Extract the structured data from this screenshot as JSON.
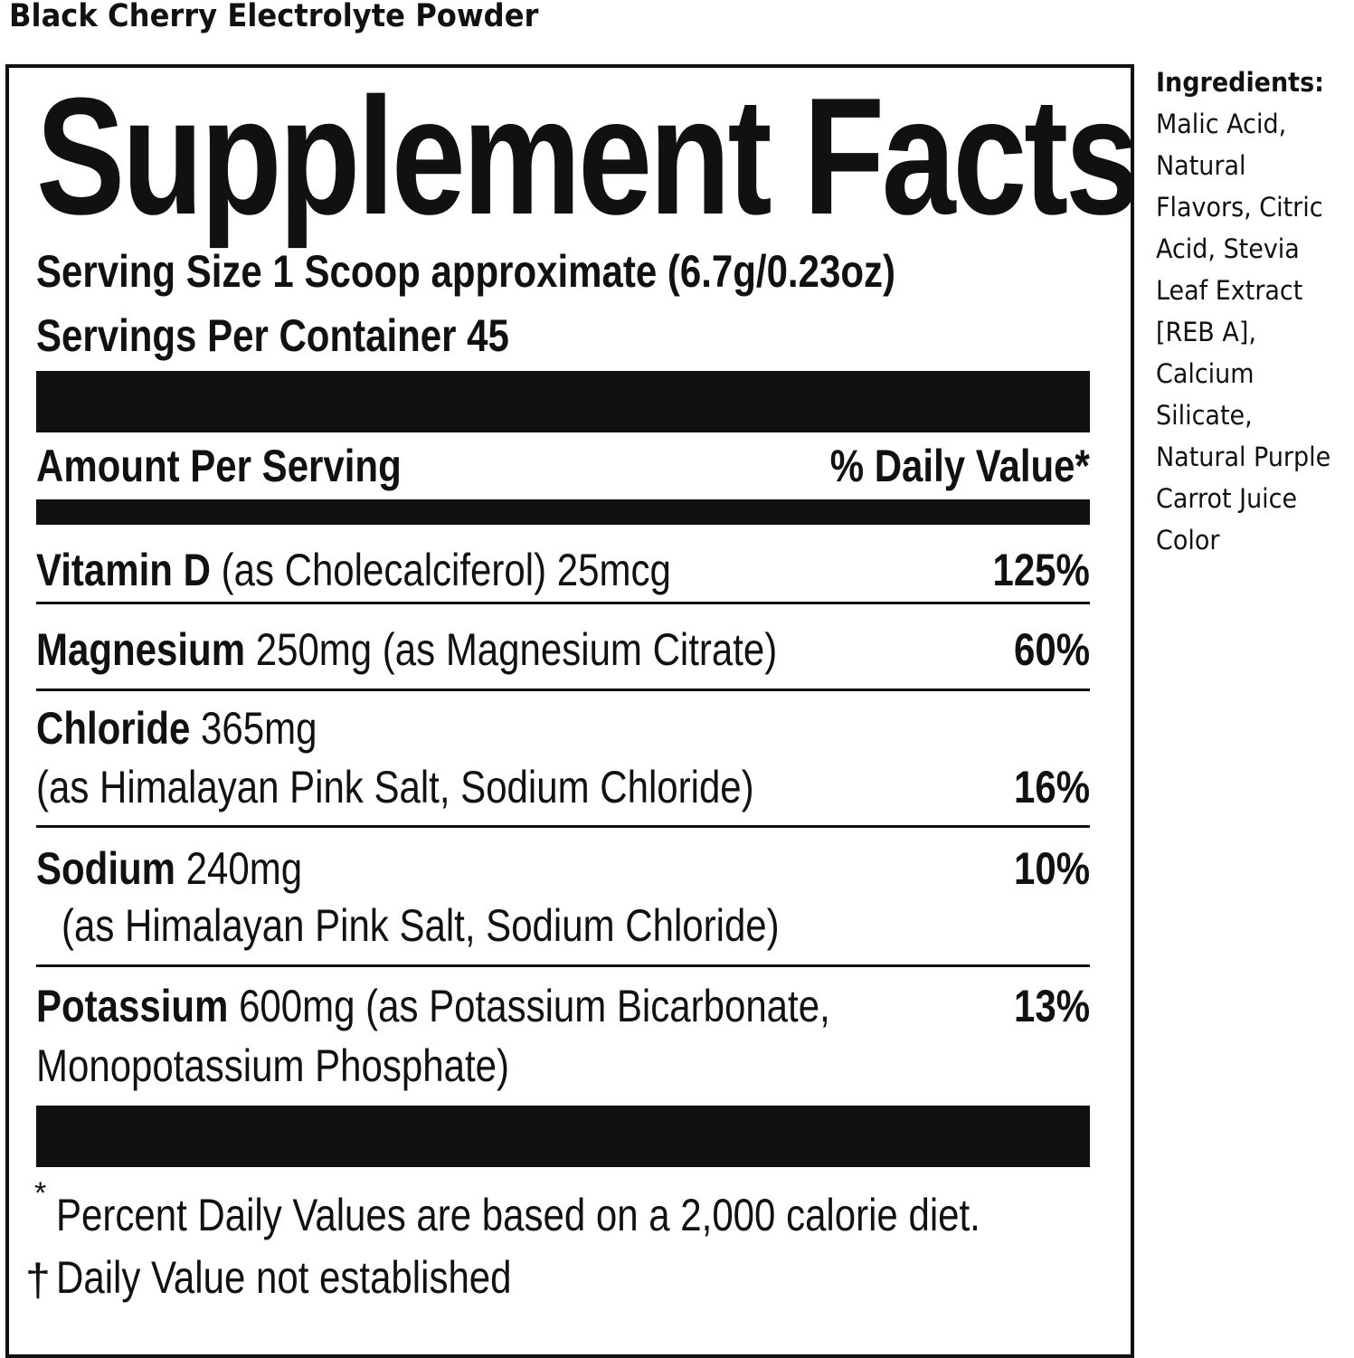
{
  "product_name": "Black Cherry Electrolyte Powder",
  "panel": {
    "title": "Supplement Facts",
    "serving_size": "Serving Size 1 Scoop approximate (6.7g/0.23oz)",
    "servings_per_container": "Servings Per Container 45",
    "amount_header": "Amount Per Serving",
    "dv_header": "% Daily Value*",
    "rows": [
      {
        "name": "Vitamin D",
        "detail": " (as Cholecalciferol) 25mcg",
        "dv": "125%"
      },
      {
        "name": "Magnesium",
        "detail": " 250mg (as Magnesium Citrate)",
        "dv": "60%"
      },
      {
        "name": "Chloride",
        "detail": " 365mg",
        "detail2": "(as Himalayan Pink Salt, Sodium Chloride)",
        "dv": "16%"
      },
      {
        "name": "Sodium",
        "detail": " 240mg",
        "detail2": "(as Himalayan Pink Salt, Sodium Chloride)",
        "dv": "10%"
      },
      {
        "name": "Potassium",
        "detail": " 600mg (as Potassium Bicarbonate,",
        "detail2": "Monopotassium Phosphate)",
        "dv": "13%"
      }
    ],
    "footnote_star": "*",
    "footnote_1": "Percent Daily Values are based on a 2,000 calorie diet.",
    "footnote_dagger": "†",
    "footnote_2": "Daily Value not established"
  },
  "ingredients": {
    "heading": "Ingredients:",
    "lines": [
      "Malic Acid,",
      "Natural",
      "Flavors, Citric",
      "Acid, Stevia",
      "Leaf Extract",
      "[REB A],",
      "Calcium",
      "Silicate,",
      "Natural Purple",
      "Carrot Juice",
      "Color"
    ]
  }
}
